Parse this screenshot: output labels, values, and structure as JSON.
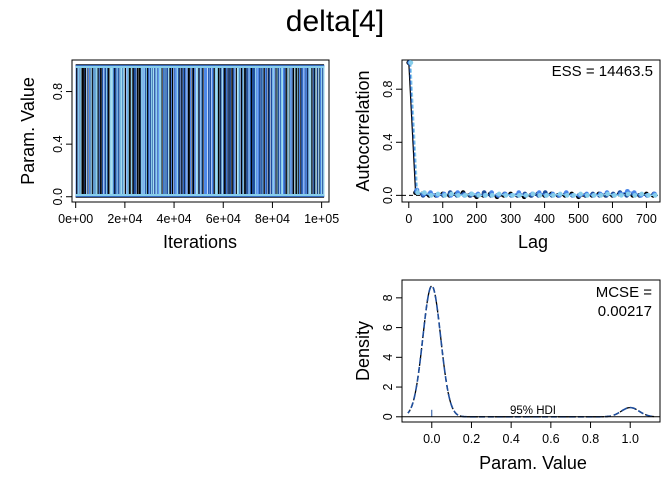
{
  "title": "delta[4]",
  "colors": {
    "chain1": "#000000",
    "chain2": "#1f4e9c",
    "chain3": "#4a86e8",
    "chain4": "#87ceeb",
    "density_dash": "#1f4e9c",
    "frame": "#000000"
  },
  "chart_data": [
    {
      "type": "line",
      "panel": "trace",
      "xlabel": "Iterations",
      "ylabel": "Param. Value",
      "xlim": [
        0,
        101000
      ],
      "ylim": [
        0,
        1
      ],
      "xticks": [
        0,
        20000,
        40000,
        60000,
        80000,
        100000
      ],
      "xtick_labels": [
        "0e+00",
        "2e+04",
        "4e+04",
        "6e+04",
        "8e+04",
        "1e+05"
      ],
      "yticks": [
        0.0,
        0.4,
        0.8
      ],
      "ytick_labels": [
        "0.0",
        "0.4",
        "0.8"
      ],
      "series_note": "binary chain values switching between 0 and 1",
      "chains": 4,
      "values_range": [
        0,
        1
      ]
    },
    {
      "type": "line",
      "panel": "autocorrelation",
      "xlabel": "Lag",
      "ylabel": "Autocorrelation",
      "annotation": "ESS = 14463.5",
      "xlim": [
        -20,
        740
      ],
      "ylim": [
        -0.05,
        1.02
      ],
      "xticks": [
        0,
        100,
        200,
        300,
        400,
        500,
        600,
        700
      ],
      "xtick_labels": [
        "0",
        "100",
        "200",
        "300",
        "400",
        "500",
        "600",
        "700"
      ],
      "yticks": [
        0.0,
        0.4,
        0.8
      ],
      "ytick_labels": [
        "0.0",
        "0.4",
        "0.8"
      ],
      "x": [
        0,
        20,
        40,
        60,
        80,
        100,
        120,
        140,
        160,
        180,
        200,
        220,
        240,
        260,
        280,
        300,
        320,
        340,
        360,
        380,
        400,
        420,
        440,
        460,
        480,
        500,
        520,
        540,
        560,
        580,
        600,
        620,
        640,
        660,
        680,
        700,
        720
      ],
      "series": [
        {
          "values": [
            1.0,
            0.02,
            0.01,
            0.0,
            0.0,
            0.01,
            0.0,
            0.01,
            0.02,
            0.0,
            -0.01,
            0.0,
            0.01,
            -0.01,
            0.0,
            0.01,
            0.0,
            -0.01,
            0.0,
            0.01,
            0.0,
            0.01,
            0.0,
            0.0,
            0.01,
            -0.01,
            0.0,
            0.0,
            0.01,
            0.0,
            0.0,
            0.01,
            0.01,
            0.0,
            0.0,
            0.01,
            0.0
          ]
        },
        {
          "values": [
            1.0,
            0.03,
            0.0,
            0.01,
            0.0,
            0.0,
            0.02,
            0.0,
            0.01,
            0.0,
            0.0,
            0.02,
            0.0,
            0.0,
            0.01,
            0.0,
            0.0,
            0.01,
            0.0,
            0.0,
            0.02,
            0.0,
            0.0,
            0.01,
            0.0,
            0.0,
            0.0,
            0.01,
            0.0,
            0.0,
            0.01,
            0.02,
            0.0,
            0.01,
            0.0,
            0.0,
            0.01
          ]
        },
        {
          "values": [
            1.0,
            0.04,
            0.01,
            0.02,
            0.0,
            0.01,
            0.0,
            0.02,
            0.0,
            0.01,
            0.01,
            0.0,
            0.02,
            0.0,
            0.01,
            0.0,
            0.02,
            0.0,
            0.01,
            0.02,
            0.0,
            0.01,
            0.0,
            0.02,
            0.0,
            0.0,
            0.01,
            0.0,
            0.01,
            0.02,
            0.0,
            0.01,
            0.03,
            0.02,
            0.0,
            0.0,
            0.01
          ]
        },
        {
          "values": [
            1.0,
            0.02,
            0.02,
            0.0,
            0.01,
            0.0,
            0.01,
            0.0,
            0.0,
            0.01,
            0.0,
            0.0,
            0.0,
            0.01,
            0.0,
            0.0,
            0.0,
            0.0,
            0.01,
            0.0,
            0.0,
            0.0,
            0.01,
            0.0,
            0.0,
            0.01,
            0.0,
            0.0,
            0.0,
            0.01,
            0.0,
            0.0,
            0.01,
            0.0,
            0.01,
            0.0,
            0.0
          ]
        }
      ],
      "zero_line": "dashed"
    },
    {
      "type": "area",
      "panel": "density",
      "xlabel": "Param. Value",
      "ylabel": "Density",
      "annotation": [
        "MCSE =",
        "0.00217"
      ],
      "hdi_label": "95% HDI",
      "hdi": [
        0.0,
        0.0
      ],
      "xlim": [
        -0.15,
        1.15
      ],
      "ylim": [
        0,
        9.2
      ],
      "xticks": [
        0.0,
        0.2,
        0.4,
        0.6,
        0.8,
        1.0
      ],
      "xtick_labels": [
        "0.0",
        "0.2",
        "0.4",
        "0.6",
        "0.8",
        "1.0"
      ],
      "yticks": [
        0,
        2,
        4,
        6,
        8
      ],
      "ytick_labels": [
        "0",
        "2",
        "4",
        "6",
        "8"
      ],
      "peaks": [
        {
          "center": 0.0,
          "height": 8.8,
          "sd": 0.045
        },
        {
          "center": 1.0,
          "height": 0.62,
          "sd": 0.045
        }
      ]
    }
  ]
}
